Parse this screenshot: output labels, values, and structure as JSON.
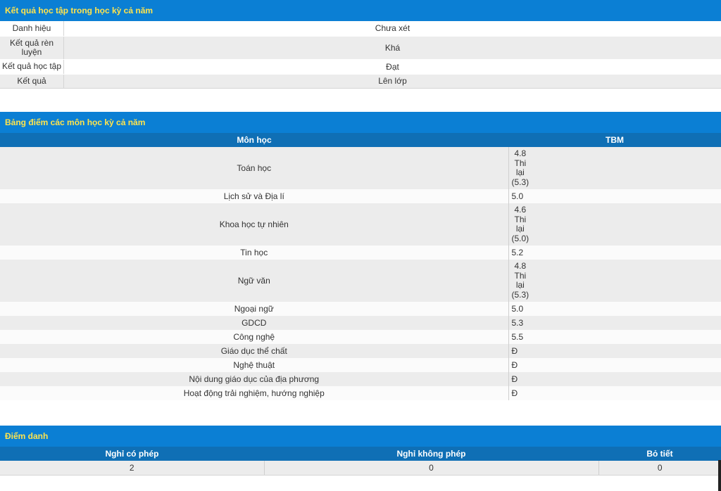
{
  "summary": {
    "title": "Kết quả học tập trong học kỳ cả năm",
    "rows": [
      {
        "label": "Danh hiệu",
        "value": "Chưa xét"
      },
      {
        "label": "Kết quả rèn luyện",
        "value": "Khá"
      },
      {
        "label": "Kết quả học tập",
        "value": "Đạt"
      },
      {
        "label": "Kết quả",
        "value": "Lên lớp"
      }
    ]
  },
  "grades": {
    "title": "Bảng điểm các môn học kỳ cả năm",
    "col_subject": "Môn học",
    "col_tbm": "TBM",
    "rows": [
      {
        "subject": "Toán học",
        "score": [
          "4.8",
          "Thi",
          "lại",
          "(5.3)"
        ]
      },
      {
        "subject": "Lịch sử và Địa lí",
        "score": [
          "5.0"
        ]
      },
      {
        "subject": "Khoa học tự nhiên",
        "score": [
          "4.6",
          "Thi",
          "lại",
          "(5.0)"
        ]
      },
      {
        "subject": "Tin học",
        "score": [
          "5.2"
        ]
      },
      {
        "subject": "Ngữ văn",
        "score": [
          "4.8",
          "Thi",
          "lại",
          "(5.3)"
        ]
      },
      {
        "subject": "Ngoại ngữ",
        "score": [
          "5.0"
        ]
      },
      {
        "subject": "GDCD",
        "score": [
          "5.3"
        ]
      },
      {
        "subject": "Công nghệ",
        "score": [
          "5.5"
        ]
      },
      {
        "subject": "Giáo dục thể chất",
        "score": [
          "Đ"
        ]
      },
      {
        "subject": "Nghệ thuật",
        "score": [
          "Đ"
        ]
      },
      {
        "subject": "Nội dung giáo dục của địa phương",
        "score": [
          "Đ"
        ]
      },
      {
        "subject": "Hoạt động trải nghiệm, hướng nghiệp",
        "score": [
          "Đ"
        ]
      }
    ]
  },
  "attendance": {
    "title": "Điểm danh",
    "headers": [
      "Nghỉ có phép",
      "Nghỉ không phép",
      "Bỏ tiết"
    ],
    "values": [
      "2",
      "0",
      "0"
    ]
  },
  "colors": {
    "header_bg": "#0b7fd4",
    "header_text": "#ffe44d",
    "table_head_bg": "#0f6fb5"
  }
}
